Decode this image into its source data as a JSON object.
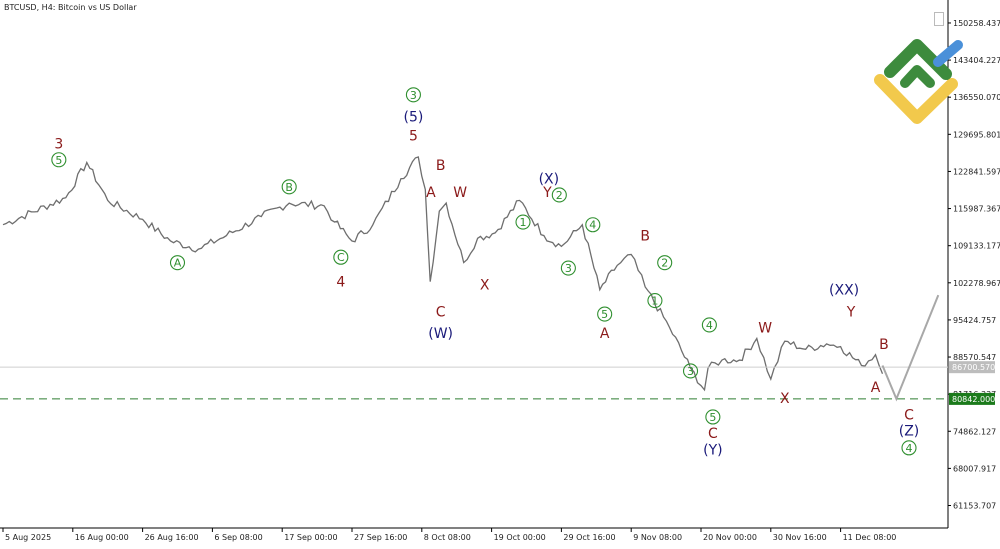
{
  "header": {
    "title": "BTCUSD, H4:  Bitcoin vs US Dollar"
  },
  "colors": {
    "candles": "#6e6e6e",
    "dark_red": "#8b1a1a",
    "navy": "#1a1a7a",
    "green": "#2f8f2f",
    "support_line": "#2e7d32",
    "current_line": "#cfcfcf",
    "projection": "#a8a8a8",
    "support_badge": "#1b7a1b",
    "current_badge": "#bdbdbd",
    "logo_green": "#3d8b3d",
    "logo_yellow": "#f2c94c",
    "logo_blue": "#4a90d9"
  },
  "chart_data": {
    "type": "line",
    "title": "BTCUSD, H4:  Bitcoin vs US Dollar",
    "y_axis_ticks": [
      150258.437,
      143404.227,
      136550.07,
      129695.801,
      122841.597,
      115987.367,
      109133.177,
      102278.967,
      95424.757,
      88570.547,
      81716.337,
      74862.127,
      68007.917,
      61153.707
    ],
    "x_axis_ticks": [
      "5 Aug 2025",
      "16 Aug 00:00",
      "26 Aug 16:00",
      "6 Sep 08:00",
      "17 Sep 00:00",
      "27 Sep 16:00",
      "8 Oct 08:00",
      "19 Oct 00:00",
      "29 Oct 16:00",
      "9 Nov 08:00",
      "20 Nov 00:00",
      "30 Nov 16:00",
      "11 Dec 08:00"
    ],
    "ylim": [
      57000,
      154500
    ],
    "price_path_xlabel_index": [
      0,
      0.9,
      1.2,
      1.5,
      2.0,
      2.4,
      2.8,
      3.2,
      3.7,
      4.1,
      4.6,
      4.75,
      5.0,
      5.3,
      5.7,
      5.95,
      6.05,
      6.12,
      6.25,
      6.35,
      6.6,
      6.8,
      7.05,
      7.4,
      7.75,
      8.0,
      8.3,
      8.55,
      8.8,
      9.0,
      9.2,
      9.55,
      9.85,
      10.05,
      10.1,
      10.3,
      10.55,
      10.8,
      11.0,
      11.2,
      11.5,
      11.8,
      12.0,
      12.3,
      12.5,
      12.6
    ],
    "price_path_values": [
      113000,
      118000,
      124500,
      117500,
      114000,
      110000,
      108500,
      111000,
      114500,
      117000,
      116500,
      113500,
      110000,
      113000,
      121500,
      125500,
      119500,
      102500,
      115500,
      117000,
      106000,
      110500,
      111500,
      117500,
      111000,
      109000,
      113000,
      101000,
      105500,
      107500,
      101500,
      94000,
      86500,
      82500,
      86500,
      88000,
      88000,
      92000,
      84500,
      91500,
      90000,
      91000,
      90500,
      87000,
      89000,
      85500
    ],
    "support_level": {
      "value": 80842.0,
      "label": "80842.000"
    },
    "current_price": {
      "value": 86700.57,
      "label": "86700.570"
    },
    "projection": {
      "x": [
        12.6,
        12.8,
        13.4
      ],
      "y": [
        87000,
        80842,
        100000
      ]
    },
    "wave_labels": [
      {
        "text": "3",
        "x": 0.8,
        "y": 128000,
        "style": "plain",
        "color": "dark_red"
      },
      {
        "text": "5",
        "x": 0.8,
        "y": 125000,
        "style": "circle",
        "color": "green"
      },
      {
        "text": "A",
        "x": 2.5,
        "y": 106000,
        "style": "circle",
        "color": "green"
      },
      {
        "text": "B",
        "x": 4.1,
        "y": 120000,
        "style": "circle",
        "color": "green"
      },
      {
        "text": "C",
        "x": 4.84,
        "y": 107000,
        "style": "circle",
        "color": "green"
      },
      {
        "text": "4",
        "x": 4.84,
        "y": 102500,
        "style": "plain",
        "color": "dark_red"
      },
      {
        "text": "3",
        "x": 5.88,
        "y": 137000,
        "style": "circle",
        "color": "green"
      },
      {
        "text": "(5)",
        "x": 5.88,
        "y": 133000,
        "style": "plain",
        "color": "navy"
      },
      {
        "text": "5",
        "x": 5.88,
        "y": 129500,
        "style": "plain",
        "color": "dark_red"
      },
      {
        "text": "B",
        "x": 6.27,
        "y": 124000,
        "style": "plain",
        "color": "dark_red"
      },
      {
        "text": "A",
        "x": 6.13,
        "y": 119000,
        "style": "plain",
        "color": "dark_red"
      },
      {
        "text": "W",
        "x": 6.55,
        "y": 119000,
        "style": "plain",
        "color": "dark_red"
      },
      {
        "text": "C",
        "x": 6.27,
        "y": 97000,
        "style": "plain",
        "color": "dark_red"
      },
      {
        "text": "(W)",
        "x": 6.27,
        "y": 93000,
        "style": "plain",
        "color": "navy"
      },
      {
        "text": "X",
        "x": 6.9,
        "y": 102000,
        "style": "plain",
        "color": "dark_red"
      },
      {
        "text": "(X)",
        "x": 7.82,
        "y": 121500,
        "style": "plain",
        "color": "navy"
      },
      {
        "text": "Y",
        "x": 7.8,
        "y": 119000,
        "style": "plain",
        "color": "dark_red"
      },
      {
        "text": "2",
        "x": 7.97,
        "y": 118500,
        "style": "circle",
        "color": "green"
      },
      {
        "text": "1",
        "x": 7.45,
        "y": 113500,
        "style": "circle",
        "color": "green"
      },
      {
        "text": "4",
        "x": 8.45,
        "y": 113000,
        "style": "circle",
        "color": "green"
      },
      {
        "text": "3",
        "x": 8.1,
        "y": 105000,
        "style": "circle",
        "color": "green"
      },
      {
        "text": "B",
        "x": 9.2,
        "y": 111000,
        "style": "plain",
        "color": "dark_red"
      },
      {
        "text": "2",
        "x": 9.48,
        "y": 106000,
        "style": "circle",
        "color": "green"
      },
      {
        "text": "1",
        "x": 9.34,
        "y": 99000,
        "style": "circle",
        "color": "green"
      },
      {
        "text": "5",
        "x": 8.62,
        "y": 96500,
        "style": "circle",
        "color": "green"
      },
      {
        "text": "A",
        "x": 8.62,
        "y": 93000,
        "style": "plain",
        "color": "dark_red"
      },
      {
        "text": "4",
        "x": 10.12,
        "y": 94500,
        "style": "circle",
        "color": "green"
      },
      {
        "text": "3",
        "x": 9.85,
        "y": 86000,
        "style": "circle",
        "color": "green"
      },
      {
        "text": "5",
        "x": 10.17,
        "y": 77500,
        "style": "circle",
        "color": "green"
      },
      {
        "text": "C",
        "x": 10.17,
        "y": 74500,
        "style": "plain",
        "color": "dark_red"
      },
      {
        "text": "(Y)",
        "x": 10.17,
        "y": 71500,
        "style": "plain",
        "color": "navy"
      },
      {
        "text": "W",
        "x": 10.92,
        "y": 94000,
        "style": "plain",
        "color": "dark_red"
      },
      {
        "text": "X",
        "x": 11.2,
        "y": 81000,
        "style": "plain",
        "color": "dark_red"
      },
      {
        "text": "(XX)",
        "x": 12.05,
        "y": 101000,
        "style": "plain",
        "color": "navy"
      },
      {
        "text": "Y",
        "x": 12.15,
        "y": 97000,
        "style": "plain",
        "color": "dark_red"
      },
      {
        "text": "B",
        "x": 12.62,
        "y": 91000,
        "style": "plain",
        "color": "dark_red"
      },
      {
        "text": "A",
        "x": 12.5,
        "y": 83000,
        "style": "plain",
        "color": "dark_red"
      },
      {
        "text": "C",
        "x": 12.98,
        "y": 78000,
        "style": "plain",
        "color": "dark_red"
      },
      {
        "text": "(Z)",
        "x": 12.98,
        "y": 75000,
        "style": "plain",
        "color": "navy"
      },
      {
        "text": "4",
        "x": 12.98,
        "y": 71800,
        "style": "circle",
        "color": "green"
      }
    ]
  }
}
